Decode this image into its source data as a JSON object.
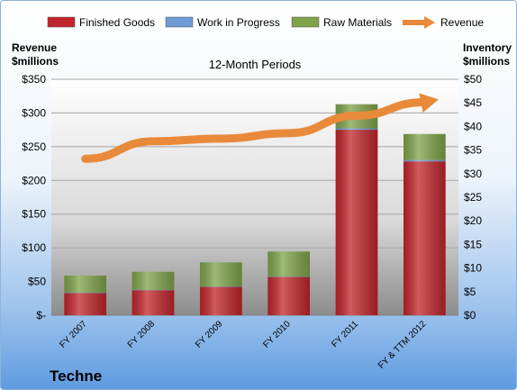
{
  "chart_data": {
    "type": "bar",
    "stacked": true,
    "subtitle": "12-Month Periods",
    "footer_label": "Techne",
    "left_axis_title": [
      "Revenue",
      "$millions"
    ],
    "right_axis_title": [
      "Inventory",
      "$millions"
    ],
    "legend_position": "top",
    "categories": [
      "FY 2007",
      "FY 2008",
      "FY 2009",
      "FY 2010",
      "FY 2011",
      "FY & TTM 2012"
    ],
    "left_ticks": [
      "$-",
      "$50",
      "$100",
      "$150",
      "$200",
      "$250",
      "$300",
      "$350"
    ],
    "right_ticks": [
      "$0",
      "$5",
      "$10",
      "$15",
      "$20",
      "$25",
      "$30",
      "$35",
      "$40",
      "$45",
      "$50"
    ],
    "left_range": [
      0,
      350
    ],
    "right_range": [
      0,
      50
    ],
    "series": [
      {
        "name": "Finished Goods",
        "axis": "right",
        "color": "#c0252b",
        "values": [
          4.7,
          5.3,
          6.0,
          8.1,
          39.3,
          32.6
        ]
      },
      {
        "name": "Work in Progress",
        "axis": "right",
        "color": "#6f9ad6",
        "values": [
          0.1,
          0.1,
          0.1,
          0.1,
          0.3,
          0.3
        ]
      },
      {
        "name": "Raw Materials",
        "axis": "right",
        "color": "#7ea34a",
        "values": [
          3.6,
          3.8,
          5.1,
          5.3,
          5.1,
          5.5
        ]
      },
      {
        "name": "Revenue",
        "axis": "left",
        "type": "line",
        "color": "#e88a3a",
        "values": [
          232,
          258,
          262,
          270,
          296,
          316
        ]
      }
    ]
  }
}
